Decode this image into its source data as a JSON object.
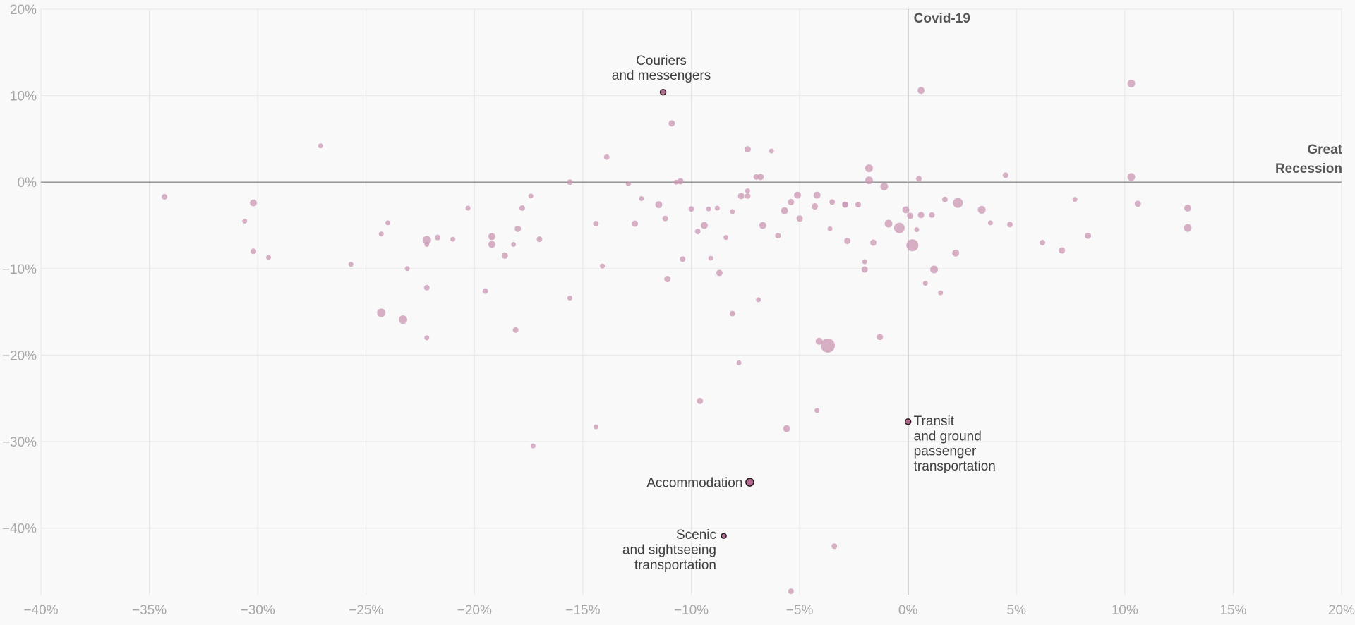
{
  "colors": {
    "background": "#f9f9f9",
    "grid": "#e7e7e7",
    "reference_line": "#8c8c8c",
    "point_fill": "#c996b3",
    "highlight_fill": "#b06b8e",
    "highlight_stroke": "#2b1a22",
    "tick_text": "#a7a7a7",
    "annotation_text": "#3f3f3f"
  },
  "chart_data": {
    "type": "scatter",
    "xlim": [
      -40,
      20
    ],
    "ylim": [
      -47.7,
      20
    ],
    "grid": true,
    "x_ticks": [
      -40,
      -35,
      -30,
      -25,
      -20,
      -15,
      -10,
      -5,
      0,
      5,
      10,
      15,
      20
    ],
    "y_ticks": [
      -40,
      -30,
      -20,
      -10,
      0,
      10,
      20
    ],
    "x_tick_labels": [
      "−40%",
      "−35%",
      "−30%",
      "−25%",
      "−20%",
      "−15%",
      "−10%",
      "−5%",
      "0%",
      "5%",
      "10%",
      "15%",
      "20%"
    ],
    "y_tick_labels": [
      "−40%",
      "−30%",
      "−20%",
      "−10%",
      "0%",
      "10%",
      "20%"
    ],
    "reference_lines": [
      {
        "orientation": "vertical",
        "value": 0,
        "label": "Covid-19"
      },
      {
        "orientation": "horizontal",
        "value": 0,
        "label": [
          "Great",
          "Recession"
        ]
      }
    ],
    "highlights": [
      {
        "x": -11.3,
        "y": 10.4,
        "r": 4,
        "label": [
          "Couriers",
          "and messengers"
        ]
      },
      {
        "x": 0,
        "y": -27.7,
        "r": 4,
        "label": [
          "Transit",
          "and ground",
          "passenger",
          "transportation"
        ]
      },
      {
        "x": -7.3,
        "y": -34.7,
        "r": 5.5,
        "label": [
          "Accommodation"
        ]
      },
      {
        "x": -8.5,
        "y": -40.9,
        "r": 3.5,
        "label": [
          "Scenic",
          "and sightseeing",
          "transportation"
        ]
      }
    ],
    "points": [
      {
        "x": -34.3,
        "y": -1.7,
        "r": 4
      },
      {
        "x": -30.2,
        "y": -2.4,
        "r": 5
      },
      {
        "x": -30.6,
        "y": -4.5,
        "r": 3.5
      },
      {
        "x": -30.2,
        "y": -8.0,
        "r": 4
      },
      {
        "x": -29.5,
        "y": -8.7,
        "r": 3.5
      },
      {
        "x": -27.1,
        "y": 4.2,
        "r": 3.5
      },
      {
        "x": -25.7,
        "y": -9.5,
        "r": 3.5
      },
      {
        "x": -24.3,
        "y": -6.0,
        "r": 3.5
      },
      {
        "x": -24.0,
        "y": -4.7,
        "r": 3.5
      },
      {
        "x": -24.3,
        "y": -15.1,
        "r": 6
      },
      {
        "x": -23.3,
        "y": -15.9,
        "r": 6
      },
      {
        "x": -23.1,
        "y": -10.0,
        "r": 3.5
      },
      {
        "x": -22.2,
        "y": -6.7,
        "r": 6
      },
      {
        "x": -22.2,
        "y": -7.2,
        "r": 3.5
      },
      {
        "x": -21.7,
        "y": -6.4,
        "r": 4
      },
      {
        "x": -22.2,
        "y": -12.2,
        "r": 4
      },
      {
        "x": -22.2,
        "y": -18.0,
        "r": 3.5
      },
      {
        "x": -21.0,
        "y": -6.6,
        "r": 3.5
      },
      {
        "x": -20.3,
        "y": -3.0,
        "r": 3.5
      },
      {
        "x": -19.5,
        "y": -12.6,
        "r": 4
      },
      {
        "x": -19.2,
        "y": -6.3,
        "r": 5
      },
      {
        "x": -19.2,
        "y": -7.2,
        "r": 5
      },
      {
        "x": -18.6,
        "y": -8.5,
        "r": 4.5
      },
      {
        "x": -18.2,
        "y": -7.2,
        "r": 3.5
      },
      {
        "x": -18.0,
        "y": -5.4,
        "r": 4.5
      },
      {
        "x": -17.8,
        "y": -3.0,
        "r": 4
      },
      {
        "x": -17.4,
        "y": -1.6,
        "r": 3.5
      },
      {
        "x": -18.1,
        "y": -17.1,
        "r": 4
      },
      {
        "x": -17.3,
        "y": -30.5,
        "r": 3.5
      },
      {
        "x": -17.0,
        "y": -6.6,
        "r": 4
      },
      {
        "x": -15.6,
        "y": 0.0,
        "r": 4
      },
      {
        "x": -15.6,
        "y": -13.4,
        "r": 3.5
      },
      {
        "x": -14.4,
        "y": -4.8,
        "r": 4
      },
      {
        "x": -14.1,
        "y": -9.7,
        "r": 3.5
      },
      {
        "x": -13.9,
        "y": 2.9,
        "r": 4
      },
      {
        "x": -14.4,
        "y": -28.3,
        "r": 3.5
      },
      {
        "x": -12.9,
        "y": -0.2,
        "r": 3.5
      },
      {
        "x": -12.6,
        "y": -4.8,
        "r": 4.5
      },
      {
        "x": -12.3,
        "y": -1.9,
        "r": 3.5
      },
      {
        "x": -10.9,
        "y": 6.8,
        "r": 4.5
      },
      {
        "x": -11.5,
        "y": -2.6,
        "r": 5
      },
      {
        "x": -11.2,
        "y": -4.2,
        "r": 4
      },
      {
        "x": -11.1,
        "y": -11.2,
        "r": 4.5
      },
      {
        "x": -10.7,
        "y": 0.0,
        "r": 3.5
      },
      {
        "x": -10.5,
        "y": 0.1,
        "r": 4.5
      },
      {
        "x": -10.4,
        "y": -8.9,
        "r": 4
      },
      {
        "x": -10.0,
        "y": -3.1,
        "r": 4
      },
      {
        "x": -9.7,
        "y": -5.7,
        "r": 4
      },
      {
        "x": -9.4,
        "y": -5.0,
        "r": 5
      },
      {
        "x": -9.2,
        "y": -3.1,
        "r": 3.5
      },
      {
        "x": -9.1,
        "y": -8.8,
        "r": 3.5
      },
      {
        "x": -8.7,
        "y": -10.5,
        "r": 4.5
      },
      {
        "x": -8.8,
        "y": -3.0,
        "r": 3.5
      },
      {
        "x": -8.4,
        "y": -6.4,
        "r": 3.5
      },
      {
        "x": -8.1,
        "y": -3.4,
        "r": 3.5
      },
      {
        "x": -8.1,
        "y": -15.2,
        "r": 4
      },
      {
        "x": -7.8,
        "y": -20.9,
        "r": 3.5
      },
      {
        "x": -9.6,
        "y": -25.3,
        "r": 4.5
      },
      {
        "x": -7.7,
        "y": -1.6,
        "r": 4.5
      },
      {
        "x": -7.4,
        "y": -1.6,
        "r": 4
      },
      {
        "x": -7.4,
        "y": -1.0,
        "r": 3.5
      },
      {
        "x": -7.4,
        "y": 3.8,
        "r": 4.5
      },
      {
        "x": -7.0,
        "y": 0.6,
        "r": 4
      },
      {
        "x": -6.8,
        "y": 0.6,
        "r": 4.5
      },
      {
        "x": -6.7,
        "y": -5.0,
        "r": 5
      },
      {
        "x": -6.9,
        "y": -13.6,
        "r": 3.5
      },
      {
        "x": -6.3,
        "y": 3.6,
        "r": 3.5
      },
      {
        "x": -6.0,
        "y": -6.2,
        "r": 4
      },
      {
        "x": -5.7,
        "y": -3.3,
        "r": 5
      },
      {
        "x": -5.6,
        "y": -28.5,
        "r": 5
      },
      {
        "x": -5.4,
        "y": -47.3,
        "r": 4
      },
      {
        "x": -5.4,
        "y": -2.3,
        "r": 4.5
      },
      {
        "x": -5.1,
        "y": -1.5,
        "r": 5
      },
      {
        "x": -5.0,
        "y": -4.2,
        "r": 4.5
      },
      {
        "x": -4.2,
        "y": -1.5,
        "r": 5
      },
      {
        "x": -4.3,
        "y": -2.8,
        "r": 4.5
      },
      {
        "x": -4.1,
        "y": -18.4,
        "r": 5
      },
      {
        "x": -4.2,
        "y": -26.4,
        "r": 3.5
      },
      {
        "x": -3.7,
        "y": -18.9,
        "r": 10
      },
      {
        "x": -3.5,
        "y": -2.3,
        "r": 4
      },
      {
        "x": -3.6,
        "y": -5.4,
        "r": 3.5
      },
      {
        "x": -3.4,
        "y": -42.1,
        "r": 4
      },
      {
        "x": -2.9,
        "y": -2.6,
        "r": 4
      },
      {
        "x": -2.9,
        "y": -2.6,
        "r": 4.5
      },
      {
        "x": -2.3,
        "y": -2.6,
        "r": 4
      },
      {
        "x": -2.8,
        "y": -6.8,
        "r": 4.5
      },
      {
        "x": -1.8,
        "y": 1.6,
        "r": 5.5
      },
      {
        "x": -1.8,
        "y": 0.2,
        "r": 5.5
      },
      {
        "x": -1.1,
        "y": -0.5,
        "r": 5.5
      },
      {
        "x": -2.0,
        "y": -9.2,
        "r": 3.5
      },
      {
        "x": -2.0,
        "y": -10.1,
        "r": 4.5
      },
      {
        "x": -1.6,
        "y": -7.0,
        "r": 4.5
      },
      {
        "x": -1.3,
        "y": -17.9,
        "r": 4.5
      },
      {
        "x": -0.9,
        "y": -4.8,
        "r": 5.5
      },
      {
        "x": -0.4,
        "y": -5.3,
        "r": 7.5
      },
      {
        "x": -0.1,
        "y": -3.2,
        "r": 5
      },
      {
        "x": 0.1,
        "y": -3.9,
        "r": 4.5
      },
      {
        "x": 0.2,
        "y": -7.3,
        "r": 8.5
      },
      {
        "x": 0.4,
        "y": -5.5,
        "r": 3.5
      },
      {
        "x": 0.5,
        "y": 0.4,
        "r": 4
      },
      {
        "x": 0.6,
        "y": -3.8,
        "r": 4.5
      },
      {
        "x": 0.6,
        "y": 10.6,
        "r": 5
      },
      {
        "x": 0.8,
        "y": -11.7,
        "r": 3.5
      },
      {
        "x": 1.1,
        "y": -3.8,
        "r": 4
      },
      {
        "x": 1.2,
        "y": -10.1,
        "r": 5.5
      },
      {
        "x": 1.5,
        "y": -12.8,
        "r": 3.5
      },
      {
        "x": 1.7,
        "y": -2.0,
        "r": 4
      },
      {
        "x": 2.2,
        "y": -8.2,
        "r": 5
      },
      {
        "x": 2.3,
        "y": -2.4,
        "r": 7
      },
      {
        "x": 3.4,
        "y": -3.2,
        "r": 5.5
      },
      {
        "x": 3.8,
        "y": -4.7,
        "r": 3.5
      },
      {
        "x": 4.5,
        "y": 0.8,
        "r": 4
      },
      {
        "x": 4.7,
        "y": -4.9,
        "r": 4
      },
      {
        "x": 6.2,
        "y": -7.0,
        "r": 4
      },
      {
        "x": 7.1,
        "y": -7.9,
        "r": 4.5
      },
      {
        "x": 7.7,
        "y": -2.0,
        "r": 3.5
      },
      {
        "x": 8.3,
        "y": -6.2,
        "r": 4.5
      },
      {
        "x": 10.3,
        "y": 11.4,
        "r": 5.5
      },
      {
        "x": 10.3,
        "y": 0.6,
        "r": 5.5
      },
      {
        "x": 10.6,
        "y": -2.5,
        "r": 4.5
      },
      {
        "x": 12.9,
        "y": -3.0,
        "r": 5
      },
      {
        "x": 12.9,
        "y": -5.3,
        "r": 5.5
      }
    ]
  }
}
